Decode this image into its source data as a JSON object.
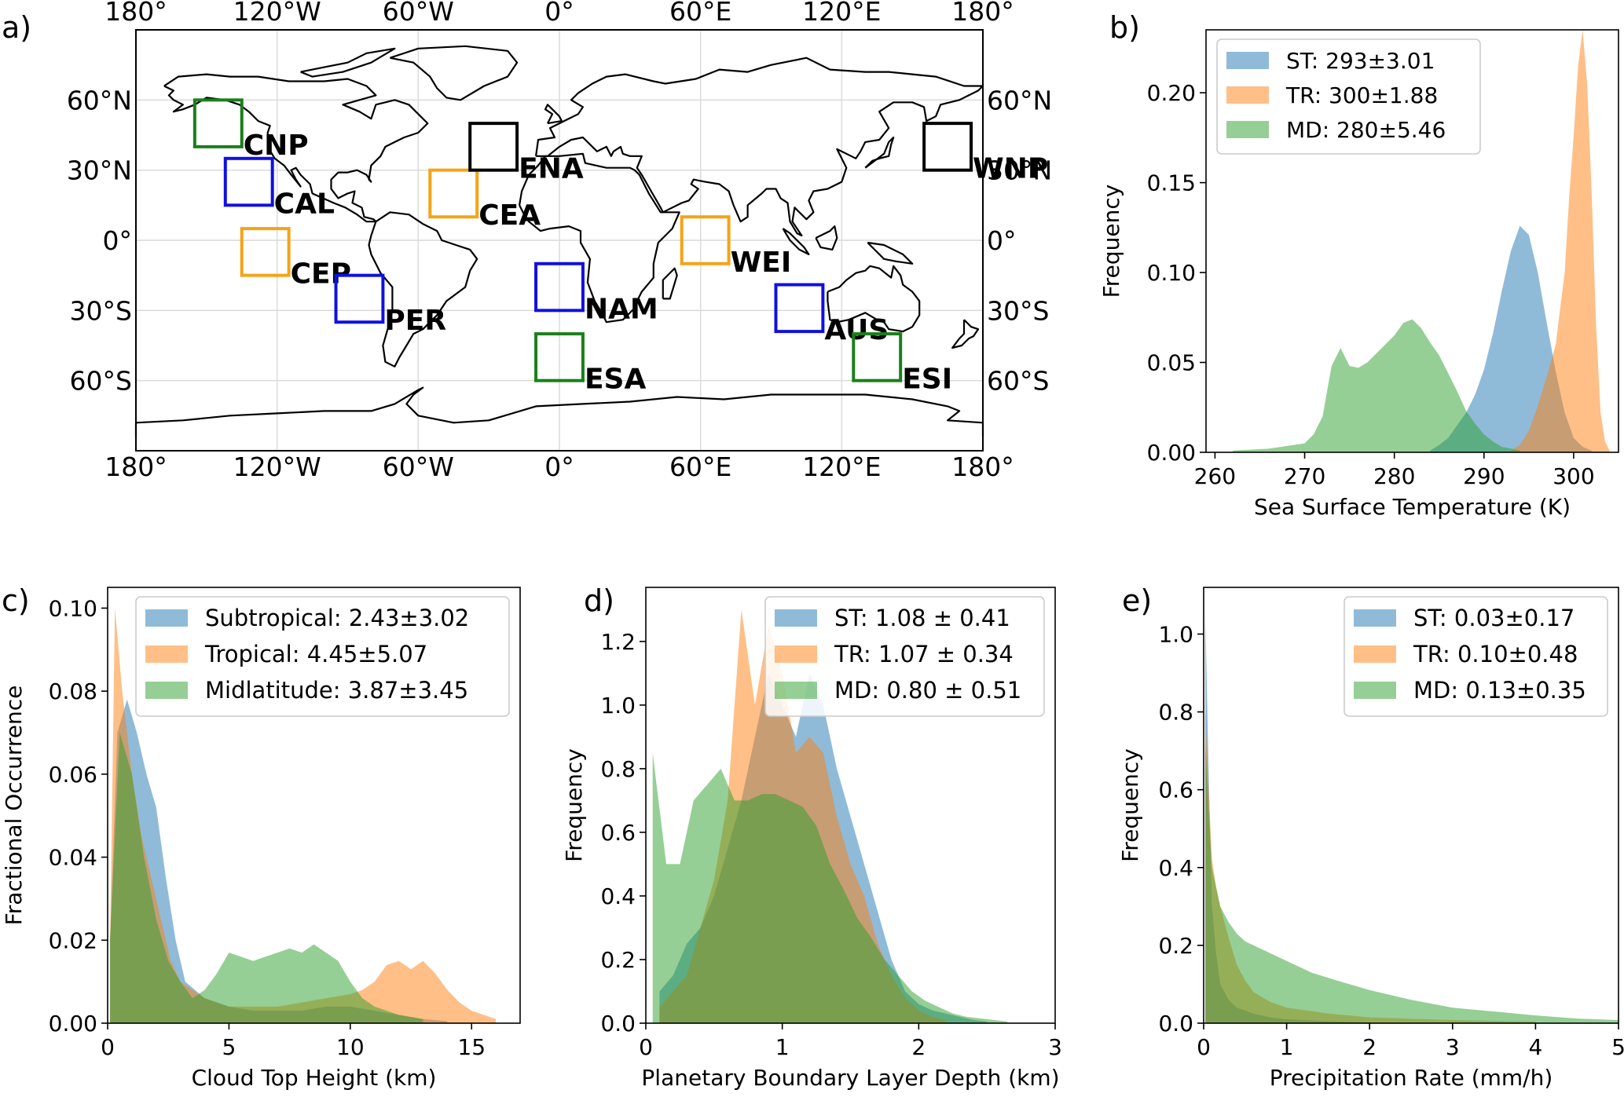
{
  "panel_labels": {
    "a": "a)",
    "b": "b)",
    "c": "c)",
    "d": "d)",
    "e": "e)"
  },
  "colors": {
    "subtropical": "#1f77b4",
    "tropical": "#ff7f0e",
    "midlatitude": "#2ca02c",
    "box_blue": "#1010e0",
    "box_orange": "#f5a316",
    "box_green": "#1a7f1a",
    "box_black": "#000000"
  },
  "chart_data": [
    {
      "type": "map",
      "panel": "a",
      "projection": "plate carree",
      "lon_ticks": [
        "180°",
        "120°W",
        "60°W",
        "0°",
        "60°E",
        "120°E",
        "180°"
      ],
      "lat_ticks": [
        "60°N",
        "30°N",
        "0°",
        "30°S",
        "60°S"
      ],
      "grid": true,
      "regions": [
        {
          "name": "CNP",
          "lon": [
            -155,
            -135
          ],
          "lat": [
            40,
            60
          ],
          "color_group": "midlatitude"
        },
        {
          "name": "CAL",
          "lon": [
            -142,
            -122
          ],
          "lat": [
            15,
            35
          ],
          "color_group": "subtropical"
        },
        {
          "name": "CEP",
          "lon": [
            -135,
            -115
          ],
          "lat": [
            -15,
            5
          ],
          "color_group": "tropical"
        },
        {
          "name": "PER",
          "lon": [
            -95,
            -75
          ],
          "lat": [
            -35,
            -15
          ],
          "color_group": "subtropical"
        },
        {
          "name": "CEA",
          "lon": [
            -55,
            -35
          ],
          "lat": [
            10,
            30
          ],
          "color_group": "tropical"
        },
        {
          "name": "ENA",
          "lon": [
            -38,
            -18
          ],
          "lat": [
            30,
            50
          ],
          "color_group": "black"
        },
        {
          "name": "NAM",
          "lon": [
            -10,
            10
          ],
          "lat": [
            -30,
            -10
          ],
          "color_group": "subtropical"
        },
        {
          "name": "ESA",
          "lon": [
            -10,
            10
          ],
          "lat": [
            -60,
            -40
          ],
          "color_group": "midlatitude"
        },
        {
          "name": "WEI",
          "lon": [
            52,
            72
          ],
          "lat": [
            -10,
            10
          ],
          "color_group": "tropical"
        },
        {
          "name": "AUS",
          "lon": [
            92,
            112
          ],
          "lat": [
            -39,
            -19
          ],
          "color_group": "subtropical"
        },
        {
          "name": "ESI",
          "lon": [
            125,
            145
          ],
          "lat": [
            -60,
            -40
          ],
          "color_group": "midlatitude"
        },
        {
          "name": "WNP",
          "lon": [
            155,
            175
          ],
          "lat": [
            30,
            50
          ],
          "color_group": "black"
        }
      ]
    },
    {
      "type": "histogram",
      "panel": "b",
      "xlabel": "Sea Surface Temperature (K)",
      "ylabel": "Frequency",
      "xlim": [
        259,
        305
      ],
      "ylim": [
        0,
        0.235
      ],
      "xticks": [
        260,
        270,
        280,
        290,
        300
      ],
      "yticks": [
        "0.00",
        "0.05",
        "0.10",
        "0.15",
        "0.20"
      ],
      "legend": {
        "position": "top-left"
      },
      "series": [
        {
          "name": "ST: 293±3.01",
          "group": "subtropical",
          "x": [
            284,
            285,
            286,
            287,
            288,
            289,
            290,
            291,
            292,
            293,
            294,
            295,
            296,
            297,
            298,
            299,
            300,
            301,
            302
          ],
          "y": [
            0.001,
            0.004,
            0.008,
            0.015,
            0.022,
            0.032,
            0.046,
            0.066,
            0.09,
            0.112,
            0.126,
            0.121,
            0.1,
            0.072,
            0.045,
            0.022,
            0.008,
            0.003,
            0.001
          ]
        },
        {
          "name": "TR: 300±1.88",
          "group": "tropical",
          "x": [
            293,
            294,
            295,
            296,
            297,
            298,
            299,
            299.5,
            300,
            300.5,
            301,
            301.5,
            302,
            302.5,
            303,
            303.5,
            304
          ],
          "y": [
            0.001,
            0.004,
            0.012,
            0.026,
            0.042,
            0.06,
            0.1,
            0.142,
            0.176,
            0.215,
            0.235,
            0.205,
            0.145,
            0.07,
            0.022,
            0.006,
            0.001
          ]
        },
        {
          "name": "MD: 280±5.46",
          "group": "midlatitude",
          "x": [
            262,
            266,
            270,
            271,
            272,
            273,
            274,
            275,
            276,
            277,
            278,
            279,
            280,
            281,
            282,
            283,
            284,
            285,
            286,
            287,
            288,
            289,
            290,
            291,
            292,
            293,
            294
          ],
          "y": [
            0.001,
            0.002,
            0.005,
            0.01,
            0.02,
            0.048,
            0.058,
            0.048,
            0.047,
            0.05,
            0.055,
            0.06,
            0.065,
            0.072,
            0.074,
            0.069,
            0.061,
            0.054,
            0.044,
            0.034,
            0.023,
            0.016,
            0.01,
            0.006,
            0.003,
            0.002,
            0.001
          ]
        }
      ]
    },
    {
      "type": "histogram",
      "panel": "c",
      "xlabel": "Cloud Top Height (km)",
      "ylabel": "Fractional Occurrence",
      "xlim": [
        0,
        17
      ],
      "ylim": [
        0,
        0.105
      ],
      "xticks": [
        0,
        5,
        10,
        15
      ],
      "yticks": [
        "0.00",
        "0.02",
        "0.04",
        "0.06",
        "0.08",
        "0.10"
      ],
      "legend": {
        "position": "top-right"
      },
      "series": [
        {
          "name": "Subtropical: 2.43±3.02",
          "group": "subtropical",
          "x": [
            0.1,
            0.4,
            0.8,
            1.2,
            1.6,
            2.0,
            2.4,
            2.8,
            3.2,
            4,
            5,
            6,
            7,
            8,
            9,
            10,
            11,
            12,
            13,
            14
          ],
          "y": [
            0.02,
            0.07,
            0.078,
            0.07,
            0.06,
            0.052,
            0.035,
            0.02,
            0.01,
            0.006,
            0.004,
            0.003,
            0.003,
            0.003,
            0.004,
            0.004,
            0.003,
            0.002,
            0.001,
            0.0005
          ]
        },
        {
          "name": "Tropical: 4.45±5.07",
          "group": "tropical",
          "x": [
            0.1,
            0.3,
            0.6,
            1.0,
            1.4,
            1.8,
            2.2,
            2.6,
            3,
            4,
            5,
            6,
            7,
            8,
            9,
            10,
            10.5,
            11,
            11.5,
            12,
            12.5,
            13,
            13.5,
            14,
            14.5,
            15,
            15.5,
            16
          ],
          "y": [
            0.02,
            0.1,
            0.08,
            0.06,
            0.045,
            0.035,
            0.025,
            0.015,
            0.01,
            0.006,
            0.004,
            0.004,
            0.004,
            0.005,
            0.006,
            0.007,
            0.008,
            0.01,
            0.014,
            0.015,
            0.013,
            0.015,
            0.012,
            0.008,
            0.005,
            0.003,
            0.002,
            0.001
          ]
        },
        {
          "name": "Midlatitude: 3.87±3.45",
          "group": "midlatitude",
          "x": [
            0.1,
            0.5,
            1.0,
            1.5,
            2.0,
            2.5,
            3,
            3.5,
            4,
            4.5,
            5,
            5.5,
            6,
            6.5,
            7,
            7.5,
            8,
            8.5,
            9,
            9.5,
            10,
            10.5,
            11,
            12,
            13
          ],
          "y": [
            0.02,
            0.07,
            0.06,
            0.04,
            0.025,
            0.015,
            0.01,
            0.006,
            0.008,
            0.012,
            0.017,
            0.016,
            0.015,
            0.016,
            0.017,
            0.018,
            0.017,
            0.019,
            0.017,
            0.015,
            0.01,
            0.006,
            0.004,
            0.002,
            0.001
          ]
        }
      ]
    },
    {
      "type": "histogram",
      "panel": "d",
      "xlabel": "Planetary Boundary Layer Depth (km)",
      "ylabel": "Frequency",
      "xlim": [
        0,
        3
      ],
      "ylim": [
        0,
        1.37
      ],
      "xticks": [
        0,
        1,
        2,
        3
      ],
      "yticks": [
        "0.0",
        "0.2",
        "0.4",
        "0.6",
        "0.8",
        "1.0",
        "1.2"
      ],
      "legend": {
        "position": "top-right"
      },
      "series": [
        {
          "name": "ST: 1.08 ± 0.41",
          "group": "subtropical",
          "x": [
            0.1,
            0.2,
            0.3,
            0.4,
            0.5,
            0.6,
            0.7,
            0.8,
            0.9,
            1.0,
            1.1,
            1.2,
            1.3,
            1.4,
            1.5,
            1.6,
            1.7,
            1.8,
            1.9,
            2.0,
            2.1,
            2.2,
            2.3,
            2.4,
            2.5
          ],
          "y": [
            0.1,
            0.15,
            0.25,
            0.3,
            0.4,
            0.55,
            0.7,
            0.9,
            1.1,
            1.0,
            0.9,
            1.1,
            1.0,
            0.8,
            0.65,
            0.5,
            0.35,
            0.2,
            0.1,
            0.06,
            0.04,
            0.03,
            0.02,
            0.01,
            0.005
          ]
        },
        {
          "name": "TR: 1.07 ± 0.34",
          "group": "tropical",
          "x": [
            0.1,
            0.2,
            0.3,
            0.4,
            0.5,
            0.6,
            0.7,
            0.8,
            0.9,
            1.0,
            1.1,
            1.2,
            1.3,
            1.4,
            1.5,
            1.6,
            1.7,
            1.8,
            1.9,
            2.0,
            2.1,
            2.2
          ],
          "y": [
            0.05,
            0.1,
            0.15,
            0.3,
            0.45,
            0.7,
            1.3,
            1.0,
            1.25,
            1.1,
            0.85,
            0.9,
            0.85,
            0.65,
            0.5,
            0.4,
            0.25,
            0.15,
            0.08,
            0.04,
            0.02,
            0.01
          ]
        },
        {
          "name": "MD: 0.80 ± 0.51",
          "group": "midlatitude",
          "x": [
            0.05,
            0.15,
            0.25,
            0.35,
            0.45,
            0.55,
            0.65,
            0.75,
            0.85,
            0.95,
            1.05,
            1.15,
            1.25,
            1.35,
            1.45,
            1.55,
            1.65,
            1.75,
            1.85,
            1.95,
            2.05,
            2.15,
            2.25,
            2.35,
            2.45,
            2.55,
            2.65
          ],
          "y": [
            0.85,
            0.5,
            0.5,
            0.7,
            0.75,
            0.8,
            0.7,
            0.7,
            0.72,
            0.72,
            0.7,
            0.68,
            0.62,
            0.5,
            0.42,
            0.33,
            0.27,
            0.2,
            0.15,
            0.1,
            0.07,
            0.05,
            0.03,
            0.02,
            0.015,
            0.01,
            0.005
          ]
        }
      ]
    },
    {
      "type": "histogram",
      "panel": "e",
      "xlabel": "Precipitation Rate (mm/h)",
      "ylabel": "Frequency",
      "xlim": [
        0,
        5
      ],
      "ylim": [
        0,
        1.12
      ],
      "xticks": [
        0,
        1,
        2,
        3,
        4,
        5
      ],
      "yticks": [
        "0.0",
        "0.2",
        "0.4",
        "0.6",
        "0.8",
        "1.0"
      ],
      "legend": {
        "position": "top-right"
      },
      "series": [
        {
          "name": "ST: 0.03±0.17",
          "group": "subtropical",
          "x": [
            0.02,
            0.06,
            0.1,
            0.15,
            0.2,
            0.3,
            0.4,
            0.6,
            0.8,
            1.0,
            1.5,
            2.0
          ],
          "y": [
            1.05,
            0.65,
            0.3,
            0.18,
            0.1,
            0.06,
            0.04,
            0.025,
            0.015,
            0.01,
            0.005,
            0.002
          ]
        },
        {
          "name": "TR: 0.10±0.48",
          "group": "tropical",
          "x": [
            0.02,
            0.06,
            0.1,
            0.15,
            0.2,
            0.3,
            0.4,
            0.5,
            0.6,
            0.8,
            1.0,
            1.5,
            2.0,
            3.0,
            4.0
          ],
          "y": [
            0.8,
            0.6,
            0.42,
            0.35,
            0.3,
            0.22,
            0.15,
            0.11,
            0.08,
            0.055,
            0.04,
            0.025,
            0.015,
            0.008,
            0.004
          ]
        },
        {
          "name": "MD: 0.13±0.35",
          "group": "midlatitude",
          "x": [
            0.02,
            0.06,
            0.1,
            0.2,
            0.3,
            0.4,
            0.5,
            0.7,
            1.0,
            1.3,
            1.6,
            2.0,
            2.5,
            3.0,
            3.5,
            4.0,
            4.5,
            5.0
          ],
          "y": [
            0.72,
            0.55,
            0.4,
            0.3,
            0.26,
            0.23,
            0.21,
            0.19,
            0.16,
            0.13,
            0.11,
            0.085,
            0.06,
            0.04,
            0.03,
            0.02,
            0.012,
            0.008
          ]
        }
      ]
    }
  ]
}
